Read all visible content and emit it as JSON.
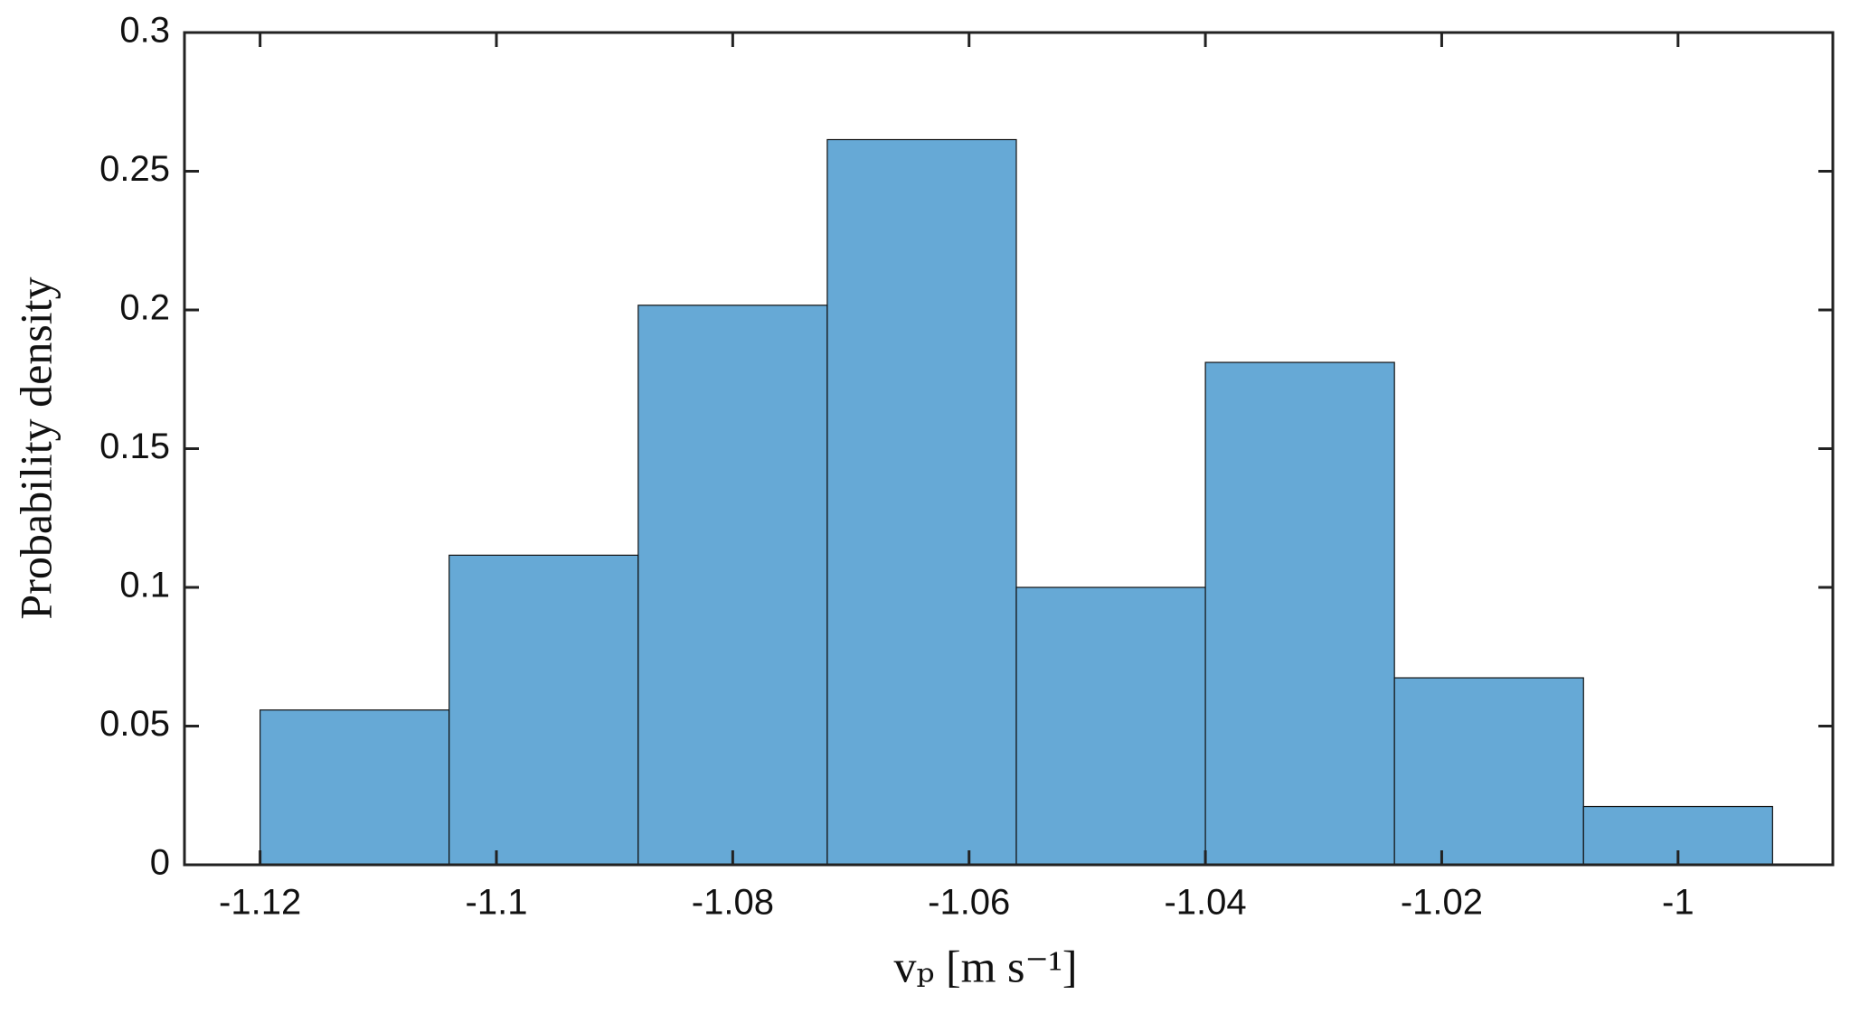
{
  "chart_data": {
    "type": "histogram",
    "xlabel": "vₚ [m s⁻¹]",
    "ylabel": "Probability density",
    "bins": [
      -1.12,
      -1.104,
      -1.088,
      -1.072,
      -1.056,
      -1.04,
      -1.024,
      -1.008,
      -0.992
    ],
    "values": [
      0.0558,
      0.1116,
      0.2017,
      0.2614,
      0.1,
      0.1811,
      0.0674,
      0.021
    ],
    "color": "#66a9d6",
    "xlim": [
      -1.1264,
      -0.9869
    ],
    "ylim": [
      0,
      0.3
    ],
    "xticks": [
      -1.12,
      -1.1,
      -1.08,
      -1.06,
      -1.04,
      -1.02,
      -1
    ],
    "yticks": [
      0,
      0.05,
      0.1,
      0.15,
      0.2,
      0.25,
      0.3
    ],
    "grid": false
  }
}
